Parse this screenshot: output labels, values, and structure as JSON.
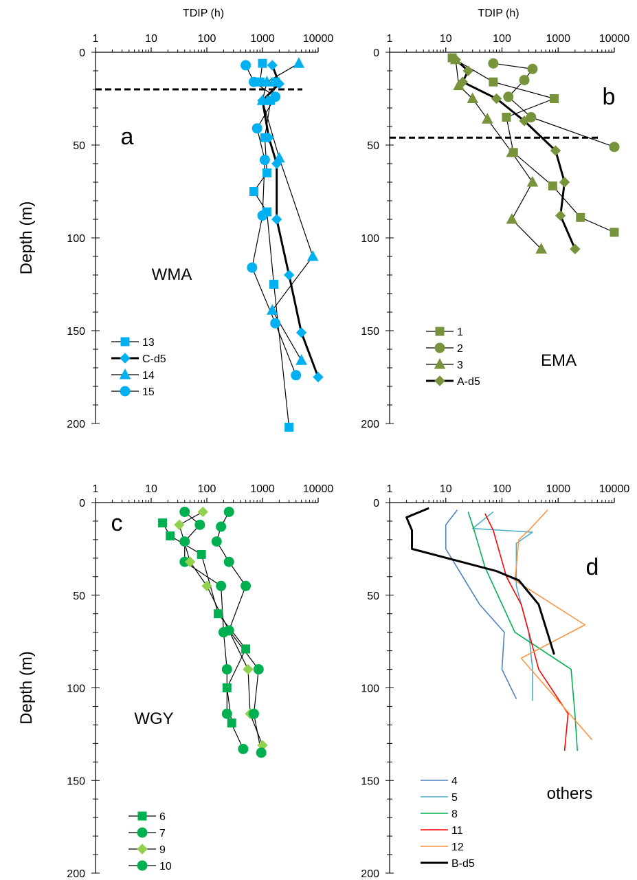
{
  "chart_data": [
    {
      "type": "line",
      "panel_letter": "a",
      "region_label": "WMA",
      "xlabel": "TDIP (h)",
      "ylabel": "Depth (m)",
      "x_scale": "log",
      "xlim": [
        1,
        10000
      ],
      "ylim": [
        0,
        200
      ],
      "y_inverted": true,
      "x_ticks": [
        "1",
        "10",
        "100",
        "1000",
        "10000"
      ],
      "y_ticks": [
        "0",
        "50",
        "100",
        "150",
        "200"
      ],
      "reference_line_depth": 20,
      "legend_position": "bottom-left",
      "series": [
        {
          "name": "13",
          "marker": "square",
          "color": "#00B0F0",
          "line": "thin",
          "points": [
            [
              1000,
              6
            ],
            [
              900,
              16
            ],
            [
              1700,
              16
            ],
            [
              1400,
              26
            ],
            [
              1100,
              46
            ],
            [
              1200,
              65
            ],
            [
              700,
              75
            ],
            [
              1200,
              86
            ],
            [
              1600,
              125
            ],
            [
              3000,
              202
            ]
          ]
        },
        {
          "name": "C-d5",
          "marker": "diamond",
          "color": "#00B0F0",
          "line": "thick",
          "points": [
            [
              1500,
              7
            ],
            [
              2000,
              17
            ],
            [
              1000,
              26
            ],
            [
              1300,
              46
            ],
            [
              1800,
              60
            ],
            [
              1800,
              90
            ],
            [
              3000,
              120
            ],
            [
              5000,
              151
            ],
            [
              10000,
              175
            ]
          ]
        },
        {
          "name": "14",
          "marker": "triangle",
          "color": "#00B0F0",
          "line": "thin",
          "points": [
            [
              4500,
              6
            ],
            [
              1200,
              16
            ],
            [
              1000,
              26
            ],
            [
              2000,
              57
            ],
            [
              8000,
              110
            ],
            [
              1500,
              139
            ],
            [
              5000,
              166
            ]
          ]
        },
        {
          "name": "15",
          "marker": "circle",
          "color": "#00B0F0",
          "line": "thin",
          "points": [
            [
              500,
              7
            ],
            [
              700,
              16
            ],
            [
              1700,
              24
            ],
            [
              800,
              41
            ],
            [
              1100,
              58
            ],
            [
              1000,
              88
            ],
            [
              650,
              116
            ],
            [
              1700,
              146
            ],
            [
              4000,
              174
            ]
          ]
        }
      ]
    },
    {
      "type": "line",
      "panel_letter": "b",
      "region_label": "EMA",
      "xlabel": "TDIP (h)",
      "ylabel": "",
      "x_scale": "log",
      "xlim": [
        1,
        10000
      ],
      "ylim": [
        0,
        200
      ],
      "y_inverted": true,
      "x_ticks": [
        "1",
        "10",
        "100",
        "1000",
        "10000"
      ],
      "y_ticks": [
        "0",
        "50",
        "100",
        "150",
        "200"
      ],
      "reference_line_depth": 46,
      "legend_position": "bottom-left",
      "series": [
        {
          "name": "1",
          "marker": "square",
          "color": "#77933C",
          "line": "thin",
          "points": [
            [
              13,
              3
            ],
            [
              70,
              16
            ],
            [
              850,
              25
            ],
            [
              120,
              35
            ],
            [
              160,
              54
            ],
            [
              800,
              72
            ],
            [
              2500,
              89
            ],
            [
              10000,
              97
            ]
          ]
        },
        {
          "name": "2",
          "marker": "circle",
          "color": "#77933C",
          "line": "thin",
          "points": [
            [
              70,
              6
            ],
            [
              350,
              9
            ],
            [
              250,
              15
            ],
            [
              130,
              24
            ],
            [
              330,
              35
            ],
            [
              10000,
              51
            ]
          ]
        },
        {
          "name": "3",
          "marker": "triangle",
          "color": "#77933C",
          "line": "thin",
          "points": [
            [
              15,
              4
            ],
            [
              17,
              18
            ],
            [
              30,
              25
            ],
            [
              55,
              36
            ],
            [
              150,
              54
            ],
            [
              350,
              70
            ],
            [
              150,
              90
            ],
            [
              500,
              106
            ]
          ]
        },
        {
          "name": "A-d5",
          "marker": "diamond",
          "color": "#77933C",
          "line": "thick",
          "points": [
            [
              15,
              4
            ],
            [
              25,
              10
            ],
            [
              20,
              16
            ],
            [
              80,
              25
            ],
            [
              250,
              37
            ],
            [
              900,
              53
            ],
            [
              1300,
              70
            ],
            [
              1100,
              88
            ],
            [
              2000,
              106
            ]
          ]
        }
      ]
    },
    {
      "type": "line",
      "panel_letter": "c",
      "region_label": "WGY",
      "xlabel": "",
      "ylabel": "Depth (m)",
      "x_scale": "log",
      "xlim": [
        1,
        10000
      ],
      "ylim": [
        0,
        200
      ],
      "y_inverted": true,
      "x_ticks": [
        "1",
        "10",
        "100",
        "1000",
        "10000"
      ],
      "y_ticks": [
        "0",
        "50",
        "100",
        "150",
        "200"
      ],
      "legend_position": "bottom-left",
      "series": [
        {
          "name": "6",
          "marker": "square",
          "color": "#00B050",
          "line": "thin",
          "points": [
            [
              16,
              11
            ],
            [
              22,
              18
            ],
            [
              80,
              28
            ],
            [
              160,
              60
            ],
            [
              500,
              79
            ],
            [
              230,
              100
            ],
            [
              280,
              119
            ]
          ]
        },
        {
          "name": "7",
          "marker": "circle",
          "color": "#00B050",
          "line": "thin",
          "points": [
            [
              40,
              5
            ],
            [
              75,
              12
            ],
            [
              40,
              21
            ],
            [
              40,
              32
            ],
            [
              180,
              45
            ],
            [
              200,
              70
            ],
            [
              230,
              90
            ],
            [
              230,
              114
            ],
            [
              450,
              133
            ]
          ]
        },
        {
          "name": "9",
          "marker": "diamond",
          "color": "#92D050",
          "line": "thin",
          "points": [
            [
              85,
              5
            ],
            [
              32,
              12
            ],
            [
              50,
              32
            ],
            [
              100,
              45
            ],
            [
              550,
              90
            ],
            [
              600,
              114
            ],
            [
              1000,
              131
            ]
          ]
        },
        {
          "name": "10",
          "marker": "circle",
          "color": "#00B050",
          "line": "thin",
          "points": [
            [
              250,
              5
            ],
            [
              180,
              13
            ],
            [
              150,
              21
            ],
            [
              250,
              32
            ],
            [
              500,
              45
            ],
            [
              250,
              69
            ],
            [
              850,
              90
            ],
            [
              700,
              114
            ],
            [
              950,
              135
            ]
          ]
        }
      ]
    },
    {
      "type": "line",
      "panel_letter": "d",
      "region_label": "others",
      "xlabel": "",
      "ylabel": "",
      "x_scale": "log",
      "xlim": [
        1,
        10000
      ],
      "ylim": [
        0,
        200
      ],
      "y_inverted": true,
      "x_ticks": [
        "1",
        "10",
        "100",
        "1000",
        "10000"
      ],
      "y_ticks": [
        "0",
        "50",
        "100",
        "150",
        "200"
      ],
      "legend_position": "bottom-left",
      "series": [
        {
          "name": "4",
          "marker": "none",
          "color": "#4F81BD",
          "line": "thin",
          "points": [
            [
              16,
              4
            ],
            [
              10,
              12
            ],
            [
              10,
              25
            ],
            [
              20,
              40
            ],
            [
              40,
              55
            ],
            [
              110,
              70
            ],
            [
              100,
              90
            ],
            [
              180,
              106
            ]
          ]
        },
        {
          "name": "5",
          "marker": "none",
          "color": "#4BACC6",
          "line": "thin",
          "points": [
            [
              70,
              5
            ],
            [
              30,
              14
            ],
            [
              350,
              16
            ],
            [
              180,
              22
            ],
            [
              180,
              45
            ],
            [
              300,
              70
            ],
            [
              350,
              90
            ],
            [
              350,
              107
            ]
          ]
        },
        {
          "name": "8",
          "marker": "none",
          "color": "#00B050",
          "line": "thin",
          "points": [
            [
              25,
              5
            ],
            [
              32,
              15
            ],
            [
              50,
              35
            ],
            [
              170,
              70
            ],
            [
              1700,
              90
            ],
            [
              2000,
              115
            ],
            [
              2200,
              134
            ]
          ]
        },
        {
          "name": "11",
          "marker": "none",
          "color": "#FF0000",
          "line": "thin",
          "points": [
            [
              50,
              6
            ],
            [
              70,
              15
            ],
            [
              120,
              40
            ],
            [
              220,
              55
            ],
            [
              300,
              70
            ],
            [
              450,
              90
            ],
            [
              1500,
              114
            ],
            [
              1300,
              134
            ]
          ]
        },
        {
          "name": "12",
          "marker": "none",
          "color": "#F79646",
          "line": "thin",
          "points": [
            [
              650,
              4
            ],
            [
              300,
              15
            ],
            [
              200,
              20
            ],
            [
              170,
              42
            ],
            [
              3000,
              66
            ],
            [
              220,
              84
            ],
            [
              4000,
              128
            ]
          ]
        },
        {
          "name": "B-d5",
          "marker": "none",
          "color": "#000000",
          "line": "thick",
          "points": [
            [
              5,
              3
            ],
            [
              2,
              8
            ],
            [
              2.5,
              15
            ],
            [
              2.5,
              25
            ],
            [
              80,
              37
            ],
            [
              200,
              42
            ],
            [
              450,
              55
            ],
            [
              850,
              82
            ]
          ]
        }
      ]
    }
  ]
}
